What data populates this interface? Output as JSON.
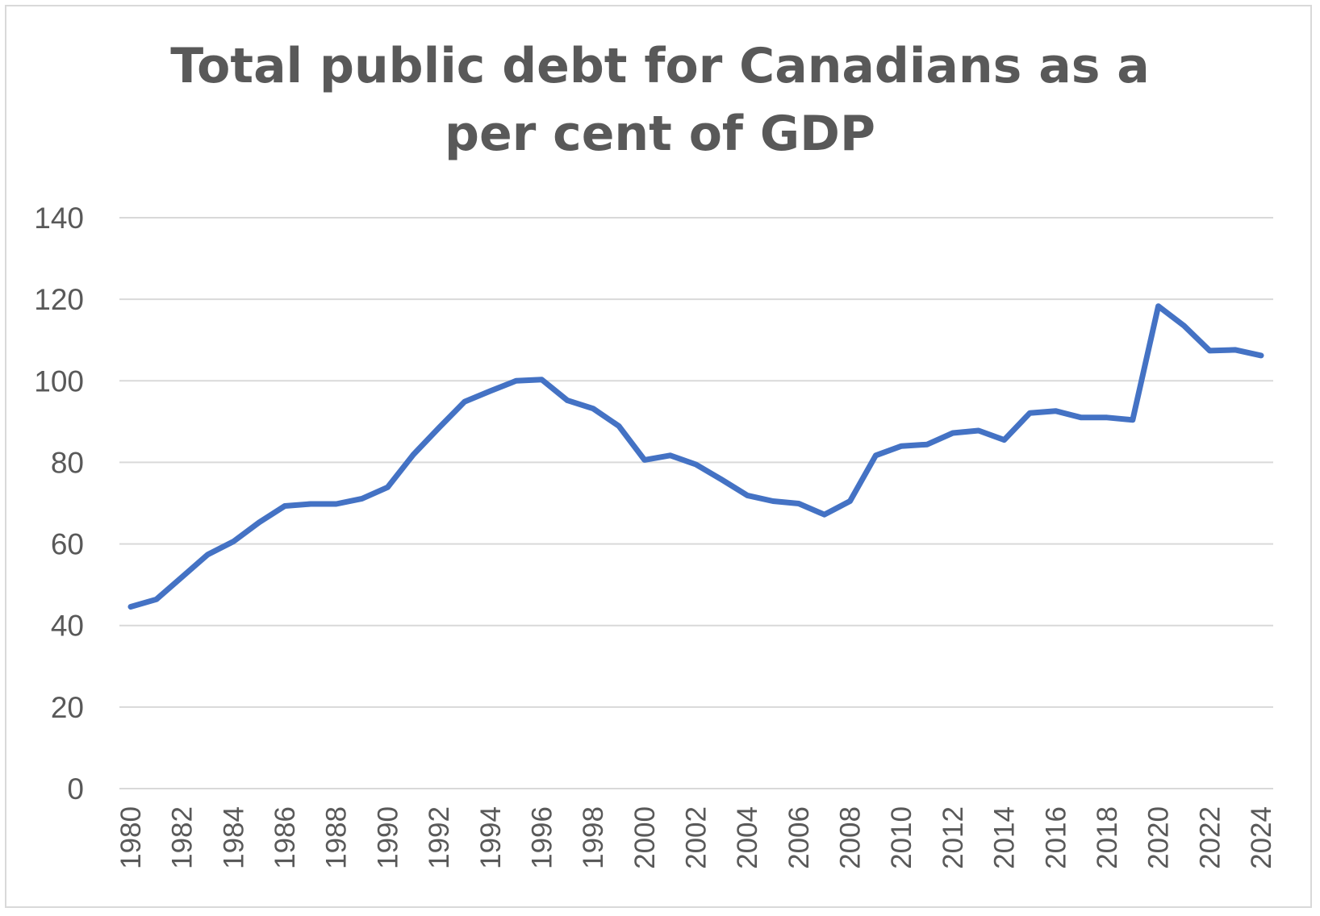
{
  "chart_data": {
    "type": "line",
    "title": "Total public debt for Canadians as a per cent of GDP",
    "xlabel": "",
    "ylabel": "",
    "ylim": [
      0,
      140
    ],
    "y_ticks": [
      "0",
      "20",
      "40",
      "60",
      "80",
      "100",
      "120",
      "140"
    ],
    "x_tick_labels": [
      "1980",
      "1982",
      "1984",
      "1986",
      "1988",
      "1990",
      "1992",
      "1994",
      "1996",
      "1998",
      "2000",
      "2002",
      "2004",
      "2006",
      "2008",
      "2010",
      "2012",
      "2014",
      "2016",
      "2018",
      "2020",
      "2022",
      "2024"
    ],
    "grid": true,
    "legend": "none",
    "series_color": "#4472c4",
    "x": [
      1980,
      1981,
      1982,
      1983,
      1984,
      1985,
      1986,
      1987,
      1988,
      1989,
      1990,
      1991,
      1992,
      1993,
      1994,
      1995,
      1996,
      1997,
      1998,
      1999,
      2000,
      2001,
      2002,
      2003,
      2004,
      2005,
      2006,
      2007,
      2008,
      2009,
      2010,
      2011,
      2012,
      2013,
      2014,
      2015,
      2016,
      2017,
      2018,
      2019,
      2020,
      2021,
      2022,
      2023,
      2024
    ],
    "values": [
      44.6,
      46.4,
      51.9,
      57.4,
      60.6,
      65.3,
      69.3,
      69.8,
      69.8,
      71.1,
      73.9,
      81.9,
      88.5,
      94.9,
      97.5,
      100.0,
      100.3,
      95.2,
      93.2,
      88.9,
      80.6,
      81.7,
      79.5,
      75.8,
      71.9,
      70.5,
      69.9,
      67.2,
      70.5,
      81.7,
      84.0,
      84.4,
      87.2,
      87.8,
      85.5,
      92.1,
      92.6,
      91.0,
      91.0,
      90.4,
      118.3,
      113.5,
      107.4,
      107.6,
      106.2
    ]
  }
}
